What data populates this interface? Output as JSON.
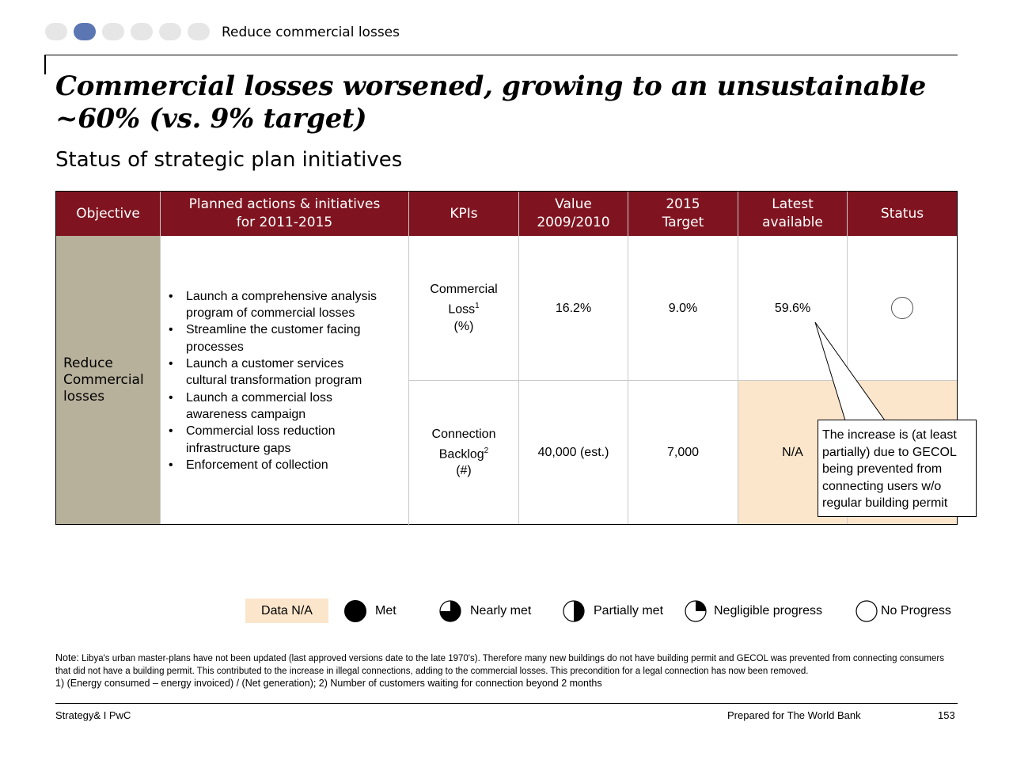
{
  "nav": {
    "section_label": "Reduce commercial losses",
    "dot_count": 6,
    "active_index": 1
  },
  "headline": "Commercial losses worsened, growing to an unsustainable ~60% (vs. 9% target)",
  "subtitle": "Status of strategic plan initiatives",
  "table": {
    "headers": {
      "objective": "Objective",
      "actions_line1": "Planned actions & initiatives",
      "actions_line2": "for 2011-2015",
      "kpis": "KPIs",
      "value_line1": "Value",
      "value_line2": "2009/2010",
      "target_line1": "2015",
      "target_line2": "Target",
      "latest_line1": "Latest",
      "latest_line2": "available",
      "status": "Status"
    },
    "objective": {
      "line1": "Reduce",
      "line2": "Commercial",
      "line3": "losses"
    },
    "actions": [
      {
        "line1": "Launch a comprehensive analysis",
        "line2": "program of commercial losses"
      },
      {
        "line1": "Streamline the customer facing",
        "line2": "processes"
      },
      {
        "line1": "Launch a customer services",
        "line2": "cultural transformation program"
      },
      {
        "line1": "Launch a commercial loss",
        "line2": "awareness campaign"
      },
      {
        "line1": "Commercial loss reduction",
        "line2": "infrastructure gaps"
      },
      {
        "line1": "Enforcement of collection",
        "line2": ""
      }
    ],
    "rows": [
      {
        "kpi_line1": "Commercial",
        "kpi_line2": "Loss",
        "kpi_sup": "1",
        "kpi_unit": "(%)",
        "value": "16.2%",
        "target": "9.0%",
        "latest": "59.6%",
        "status": "No Progress"
      },
      {
        "kpi_line1": "Connection",
        "kpi_line2": "Backlog",
        "kpi_sup": "2",
        "kpi_unit": "(#)",
        "value": "40,000 (est.)",
        "target": "7,000",
        "latest": "N/A",
        "status": "Data N/A"
      }
    ]
  },
  "callout": {
    "line1": "The increase is (at least",
    "line2": "partially) due to GECOL",
    "line3": "being prevented from",
    "line4": "connecting users w/o",
    "line5": "regular building permit"
  },
  "legend": {
    "data_na": "Data N/A",
    "met": "Met",
    "nearly_met": "Nearly met",
    "partially_met": "Partially met",
    "negligible": "Negligible progress",
    "no_progress": "No Progress"
  },
  "notes": {
    "label": "Note:",
    "text": "Libya's urban master-plans have not been updated (last approved versions date to the late 1970's). Therefore many new buildings do not have building permit and GECOL was prevented from connecting consumers that did not have a building permit. This contributed to the increase in illegal connections, adding to the commercial losses. This precondition for a legal connection has now been removed.",
    "footnotes": "1) (Energy consumed – energy invoiced) / (Net generation); 2) Number of customers waiting for connection beyond 2 months"
  },
  "footer": {
    "left": "Strategy& I PwC",
    "middle": "Prepared for The World Bank",
    "page": "153"
  },
  "colors": {
    "header_bg": "#7f1420",
    "objective_bg": "#b7b09b",
    "data_na_bg": "#fbe6cc",
    "active_dot": "#5b76b3",
    "inactive_dot": "#e6e6e6"
  }
}
